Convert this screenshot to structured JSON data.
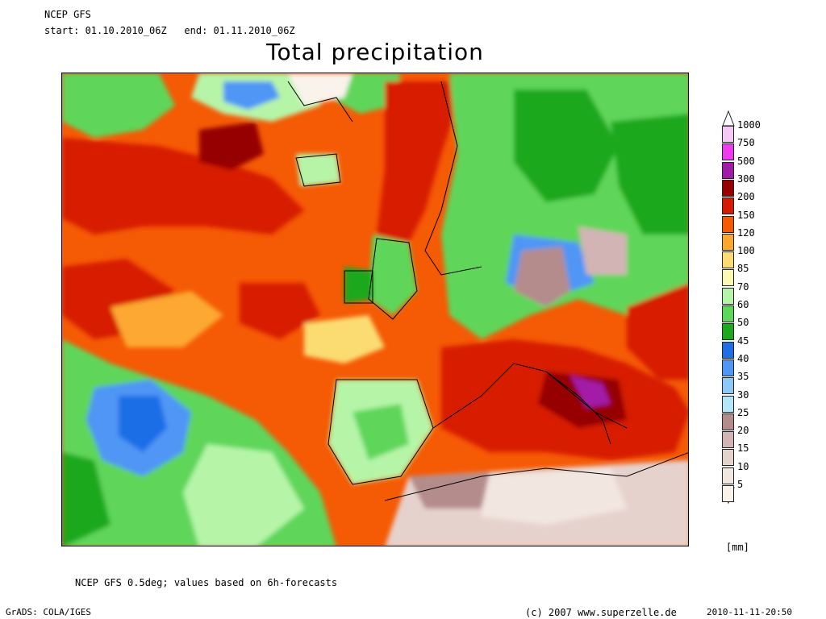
{
  "header": {
    "model": "NCEP GFS",
    "period": "start: 01.10.2010_06Z   end: 01.11.2010_06Z",
    "title": "Total precipitation"
  },
  "legend": {
    "unit": "[mm]",
    "classes": [
      {
        "label": "1000",
        "color": "#f5c8f5"
      },
      {
        "label": "750",
        "color": "#ef3aef"
      },
      {
        "label": "500",
        "color": "#a21aa8"
      },
      {
        "label": "300",
        "color": "#960000"
      },
      {
        "label": "200",
        "color": "#d71a00"
      },
      {
        "label": "150",
        "color": "#f55a05"
      },
      {
        "label": "120",
        "color": "#fca830"
      },
      {
        "label": "100",
        "color": "#fbdc72"
      },
      {
        "label": "85",
        "color": "#fafab4"
      },
      {
        "label": "70",
        "color": "#b6f5a8"
      },
      {
        "label": "60",
        "color": "#5ed65a"
      },
      {
        "label": "50",
        "color": "#1ea81e"
      },
      {
        "label": "45",
        "color": "#1e6ee6"
      },
      {
        "label": "40",
        "color": "#5096f5"
      },
      {
        "label": "35",
        "color": "#8cc8fa"
      },
      {
        "label": "30",
        "color": "#b4e6fa"
      },
      {
        "label": "25",
        "color": "#b48c8c"
      },
      {
        "label": "20",
        "color": "#d2b4b4"
      },
      {
        "label": "15",
        "color": "#e6d2cd"
      },
      {
        "label": "10",
        "color": "#f2e6e0"
      },
      {
        "label": "5",
        "color": "#faf3ec"
      }
    ]
  },
  "footer": {
    "note": "NCEP GFS 0.5deg; values based on 6h-forecasts",
    "grads": "GrADS: COLA/IGES",
    "copyright": "(c) 2007 www.superzelle.de",
    "timestamp": "2010-11-11-20:50"
  }
}
